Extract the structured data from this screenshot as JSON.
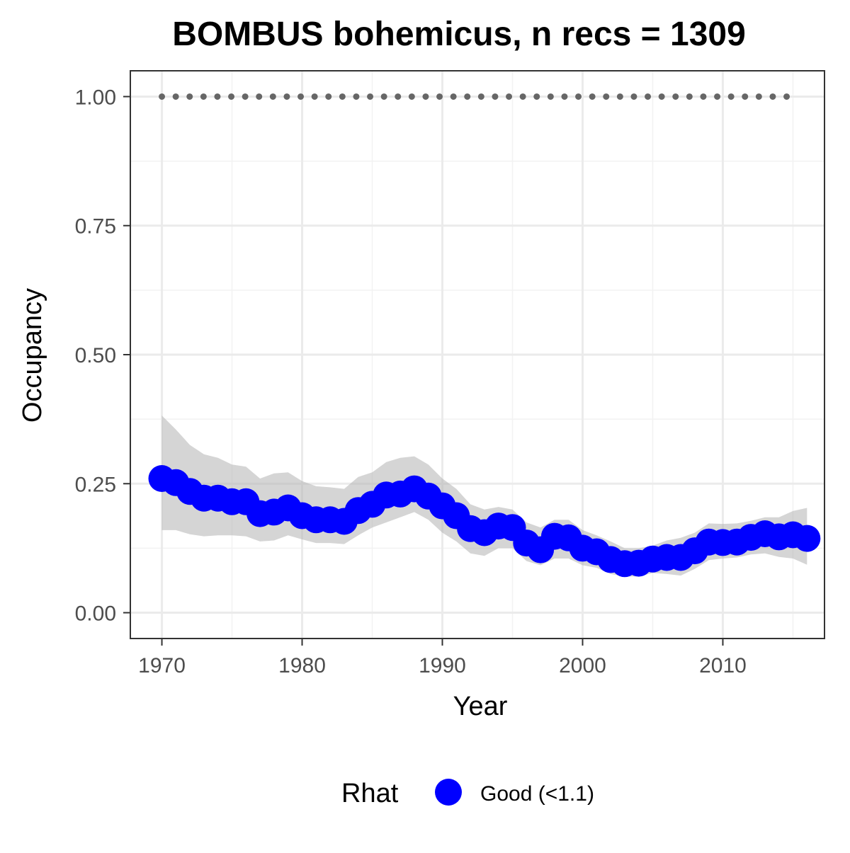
{
  "chart_data": {
    "type": "line",
    "title": "BOMBUS bohemicus, n recs = 1309",
    "xlabel": "Year",
    "ylabel": "Occupancy",
    "xlim": [
      1967.75,
      2017.25
    ],
    "ylim": [
      -0.05,
      1.05
    ],
    "x_ticks": [
      1970,
      1980,
      1990,
      2000,
      2010
    ],
    "x_tick_labels": [
      "1970",
      "1980",
      "1990",
      "2000",
      "2010"
    ],
    "y_ticks": [
      0,
      0.25,
      0.5,
      0.75,
      1.0
    ],
    "y_tick_labels": [
      "0.00",
      "0.25",
      "0.50",
      "0.75",
      "1.00"
    ],
    "y_minor_ticks": [
      0.125,
      0.375,
      0.625,
      0.875
    ],
    "grid": true,
    "legend": {
      "position": "bottom",
      "title": "Rhat",
      "entries": [
        {
          "label": "Good (<1.1)",
          "color": "#0000ff"
        }
      ]
    },
    "series": [
      {
        "type": "points",
        "color": "#0000ff",
        "x": [
          1970,
          1971,
          1972,
          1973,
          1974,
          1975,
          1976,
          1977,
          1978,
          1979,
          1980,
          1981,
          1982,
          1983,
          1984,
          1985,
          1986,
          1987,
          1988,
          1989,
          1990,
          1991,
          1992,
          1993,
          1994,
          1995,
          1996,
          1997,
          1998,
          1999,
          2000,
          2001,
          2002,
          2003,
          2004,
          2005,
          2006,
          2007,
          2008,
          2009,
          2010,
          2011,
          2012,
          2013,
          2014,
          2015,
          2016
        ],
        "y": [
          0.26,
          0.252,
          0.235,
          0.222,
          0.222,
          0.215,
          0.215,
          0.192,
          0.195,
          0.203,
          0.188,
          0.18,
          0.18,
          0.177,
          0.198,
          0.21,
          0.228,
          0.23,
          0.24,
          0.226,
          0.207,
          0.188,
          0.163,
          0.155,
          0.168,
          0.165,
          0.135,
          0.122,
          0.148,
          0.145,
          0.125,
          0.118,
          0.103,
          0.095,
          0.096,
          0.104,
          0.107,
          0.107,
          0.12,
          0.137,
          0.136,
          0.137,
          0.146,
          0.153,
          0.147,
          0.151,
          0.144
        ]
      },
      {
        "type": "ribbon",
        "color": "#b3b3b3",
        "x": [
          1970,
          1971,
          1972,
          1973,
          1974,
          1975,
          1976,
          1977,
          1978,
          1979,
          1980,
          1981,
          1982,
          1983,
          1984,
          1985,
          1986,
          1987,
          1988,
          1989,
          1990,
          1991,
          1992,
          1993,
          1994,
          1995,
          1996,
          1997,
          1998,
          1999,
          2000,
          2001,
          2002,
          2003,
          2004,
          2005,
          2006,
          2007,
          2008,
          2009,
          2010,
          2011,
          2012,
          2013,
          2014,
          2015,
          2016
        ],
        "ymin": [
          0.16,
          0.16,
          0.152,
          0.148,
          0.15,
          0.15,
          0.148,
          0.138,
          0.14,
          0.15,
          0.142,
          0.135,
          0.135,
          0.133,
          0.15,
          0.165,
          0.175,
          0.185,
          0.195,
          0.18,
          0.155,
          0.138,
          0.115,
          0.11,
          0.125,
          0.125,
          0.1,
          0.092,
          0.105,
          0.105,
          0.092,
          0.087,
          0.075,
          0.07,
          0.07,
          0.077,
          0.075,
          0.072,
          0.085,
          0.102,
          0.105,
          0.107,
          0.113,
          0.115,
          0.108,
          0.105,
          0.093
        ],
        "ymax": [
          0.382,
          0.355,
          0.325,
          0.307,
          0.3,
          0.287,
          0.283,
          0.26,
          0.27,
          0.272,
          0.255,
          0.245,
          0.243,
          0.24,
          0.263,
          0.272,
          0.292,
          0.3,
          0.303,
          0.287,
          0.26,
          0.24,
          0.21,
          0.2,
          0.205,
          0.2,
          0.175,
          0.165,
          0.18,
          0.18,
          0.16,
          0.15,
          0.138,
          0.125,
          0.125,
          0.13,
          0.14,
          0.145,
          0.155,
          0.173,
          0.172,
          0.173,
          0.178,
          0.185,
          0.185,
          0.197,
          0.203
        ]
      },
      {
        "type": "dotted-line",
        "color": "#666666",
        "x": [
          1970,
          2015
        ],
        "y": [
          1.0,
          1.0
        ]
      }
    ]
  }
}
